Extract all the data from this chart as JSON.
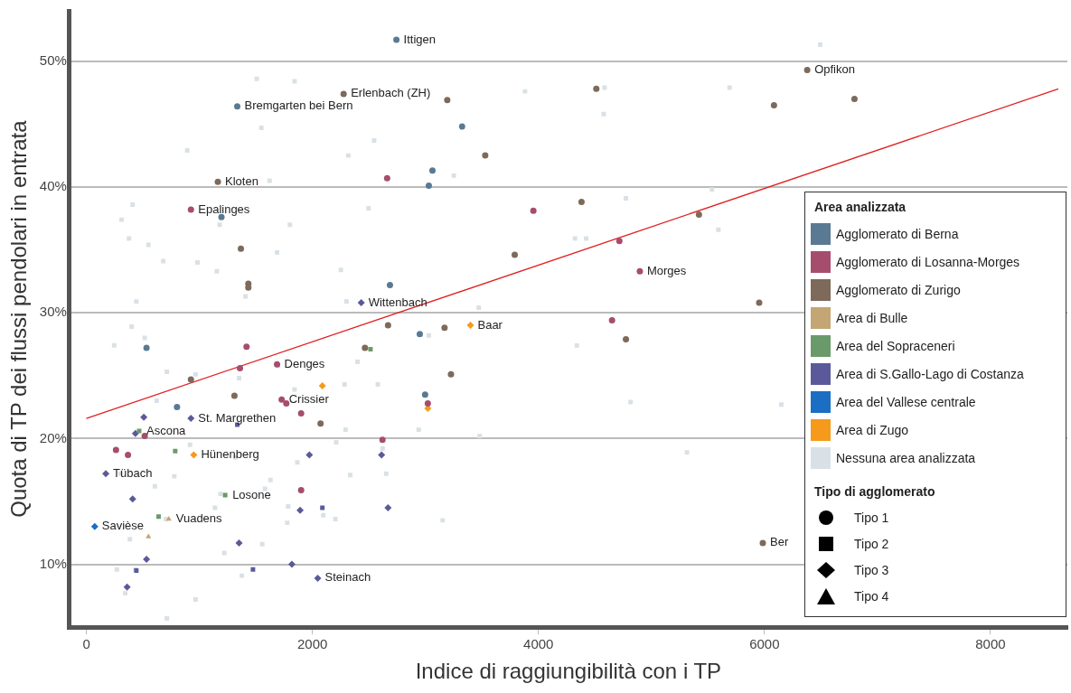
{
  "chart_data": {
    "type": "scatter",
    "xlabel": "Indice di raggiungibilità con i TP",
    "ylabel": "Quota di TP dei flussi pendolari in entrata",
    "xlim": [
      -150,
      8680
    ],
    "ylim": [
      5,
      54
    ],
    "xticks": [
      0,
      2000,
      4000,
      6000,
      8000
    ],
    "yticks": [
      {
        "value": 10,
        "label": "10%"
      },
      {
        "value": 20,
        "label": "20%"
      },
      {
        "value": 30,
        "label": "30%"
      },
      {
        "value": 40,
        "label": "40%"
      },
      {
        "value": 50,
        "label": "50%"
      }
    ],
    "grid": "y",
    "legend": "right",
    "legend_title": "Area analizzata",
    "series": [
      {
        "name": "Agglomerato di Berna",
        "color": "#5a7a93",
        "marker": "circle",
        "x": [
          2743,
          1335,
          1195,
          3324,
          3062,
          3030,
          2686,
          532,
          802,
          2997,
          2950
        ],
        "values": [
          51.7,
          46.4,
          37.6,
          44.8,
          41.3,
          40.1,
          32.2,
          27.2,
          22.5,
          23.5,
          28.3
        ]
      },
      {
        "name": "Agglomerato di Losanna-Morges",
        "color": "#a64d6e",
        "marker": "circle",
        "x": [
          925,
          2661,
          3955,
          4716,
          4897,
          4651,
          1417,
          1359,
          1687,
          1728,
          1769,
          1900,
          3021,
          2620,
          262,
          368,
          516,
          1900
        ],
        "values": [
          38.2,
          40.7,
          38.1,
          35.7,
          33.3,
          29.4,
          27.3,
          25.6,
          25.9,
          23.1,
          22.8,
          22.0,
          22.8,
          19.9,
          19.1,
          18.7,
          20.2,
          15.9
        ]
      },
      {
        "name": "Agglomerato di Zurigo",
        "color": "#7d6a5a",
        "marker": "circle",
        "x": [
          2276,
          3193,
          4512,
          6084,
          6796,
          6378,
          3529,
          1163,
          4381,
          5420,
          3790,
          1367,
          1433,
          1433,
          5953,
          4774,
          3169,
          3226,
          2669,
          925,
          1310,
          2072,
          2465,
          5985
        ],
        "values": [
          47.4,
          46.9,
          47.8,
          46.5,
          47.0,
          49.3,
          42.5,
          40.4,
          38.8,
          37.8,
          34.6,
          35.1,
          32.3,
          32.0,
          30.8,
          27.9,
          28.8,
          25.1,
          29.0,
          24.7,
          23.4,
          21.2,
          27.2,
          11.7
        ]
      },
      {
        "name": "Area di Bulle",
        "color": "#c4a574",
        "marker": "triangle",
        "x": [
          729,
          549
        ],
        "values": [
          13.6,
          12.2
        ]
      },
      {
        "name": "Area del Sopraceneri",
        "color": "#6a9a6a",
        "marker": "square",
        "x": [
          467,
          786,
          1228,
          639,
          2514
        ],
        "values": [
          20.6,
          19.0,
          15.5,
          13.8,
          27.1
        ]
      },
      {
        "name": "Area di S.Gallo-Lago di Costanza",
        "color": "#5a5a9a",
        "marker": "diamond",
        "x": [
          2432,
          925,
          508,
          434,
          172,
          1973,
          2612,
          409,
          1891,
          2669,
          1351,
          532,
          1818,
          2047,
          360
        ],
        "values": [
          30.8,
          21.6,
          21.7,
          20.4,
          17.2,
          18.7,
          18.7,
          15.2,
          14.3,
          14.5,
          11.7,
          10.4,
          10.0,
          8.9,
          8.2
        ]
      },
      {
        "color": "#5a5a9a",
        "marker": "square",
        "x": [
          2088,
          1474,
          442,
          1335
        ],
        "values": [
          14.5,
          9.6,
          9.5,
          21.1
        ]
      },
      {
        "name": "Area del Vallese centrale",
        "color": "#1a6fc4",
        "marker": "diamond",
        "x": [
          74
        ],
        "values": [
          13.0
        ]
      },
      {
        "name": "Area di Zugo",
        "color": "#f59a1a",
        "marker": "diamond",
        "x": [
          3398,
          2088,
          3021,
          950
        ],
        "values": [
          29.0,
          24.2,
          22.4,
          18.7
        ]
      },
      {
        "name": "Nessuna area analizzata",
        "color": "#d9e1e6",
        "marker": "square",
        "x": [
          1507,
          1842,
          1548,
          892,
          2317,
          2546,
          1621,
          409,
          311,
          377,
          549,
          680,
          1179,
          1801,
          2497,
          2252,
          983,
          1154,
          1687,
          442,
          1408,
          2301,
          3881,
          4585,
          4577,
          3251,
          4774,
          5535,
          4323,
          4422,
          5592,
          3472,
          401,
          246,
          516,
          622,
          712,
          966,
          1351,
          1695,
          1842,
          2399,
          2284,
          2579,
          2293,
          2620,
          2211,
          1867,
          1629,
          1318,
          917,
          778,
          606,
          303,
          704,
          385,
          1187,
          1138,
          1580,
          1785,
          2203,
          1556,
          1220,
          434,
          270,
          344,
          966,
          712,
          1376,
          1777,
          2096,
          2334,
          2653,
          3030,
          4340,
          4815,
          3152,
          6149,
          2940,
          3480,
          5314,
          6493,
          5691
        ],
        "values": [
          48.6,
          48.4,
          44.7,
          42.9,
          42.5,
          43.7,
          40.5,
          38.6,
          37.4,
          35.9,
          35.4,
          34.1,
          37.0,
          37.0,
          38.3,
          33.4,
          34.0,
          33.3,
          34.8,
          30.9,
          31.3,
          30.9,
          47.6,
          47.9,
          45.8,
          40.9,
          39.1,
          39.8,
          35.9,
          35.9,
          36.6,
          30.4,
          28.9,
          27.4,
          28.0,
          23.0,
          25.3,
          25.1,
          24.8,
          25.8,
          23.9,
          26.1,
          24.3,
          24.3,
          20.7,
          19.2,
          19.7,
          18.1,
          16.7,
          18.5,
          19.5,
          17.0,
          16.2,
          17.2,
          13.6,
          12.0,
          15.6,
          14.5,
          16.0,
          14.6,
          13.6,
          11.6,
          10.9,
          9.6,
          9.6,
          7.7,
          7.2,
          5.7,
          9.1,
          13.3,
          13.9,
          17.1,
          17.2,
          28.2,
          27.4,
          22.9,
          13.5,
          22.7,
          20.7,
          20.2,
          18.9,
          51.3,
          47.9
        ]
      },
      {
        "type": "line",
        "color": "#e02020",
        "x": [
          0,
          8600
        ],
        "values": [
          21.6,
          47.8
        ]
      }
    ],
    "annotations": [
      {
        "text": "Ittigen",
        "x": 2743,
        "y": 51.7
      },
      {
        "text": "Opfikon",
        "x": 6378,
        "y": 49.3
      },
      {
        "text": "Erlenbach (ZH)",
        "x": 2276,
        "y": 47.4
      },
      {
        "text": "Bremgarten bei Bern",
        "x": 1335,
        "y": 46.4
      },
      {
        "text": "Kloten",
        "x": 1163,
        "y": 40.4
      },
      {
        "text": "Epalinges",
        "x": 925,
        "y": 38.2
      },
      {
        "text": "Morges",
        "x": 4897,
        "y": 33.3
      },
      {
        "text": "Wittenbach",
        "x": 2432,
        "y": 30.8
      },
      {
        "text": "Baar",
        "x": 3398,
        "y": 29.0
      },
      {
        "text": "Denges",
        "x": 1687,
        "y": 25.9
      },
      {
        "text": "Crissier",
        "x": 1728,
        "y": 23.1
      },
      {
        "text": "St. Margrethen",
        "x": 925,
        "y": 21.6
      },
      {
        "text": "Ascona",
        "x": 467,
        "y": 20.6
      },
      {
        "text": "Hünenberg",
        "x": 950,
        "y": 18.7
      },
      {
        "text": "Tübach",
        "x": 172,
        "y": 17.2
      },
      {
        "text": "Losone",
        "x": 1228,
        "y": 15.5
      },
      {
        "text": "Vuadens",
        "x": 729,
        "y": 13.6
      },
      {
        "text": "Savièse",
        "x": 74,
        "y": 13.0
      },
      {
        "text": "Steinach",
        "x": 2047,
        "y": 8.9
      },
      {
        "text": "Ber",
        "x": 5985,
        "y": 11.7
      },
      "Tipo di agglomerato",
      "Tipo 1",
      "Tipo 2",
      "Tipo 3",
      "Tipo 4"
    ]
  }
}
